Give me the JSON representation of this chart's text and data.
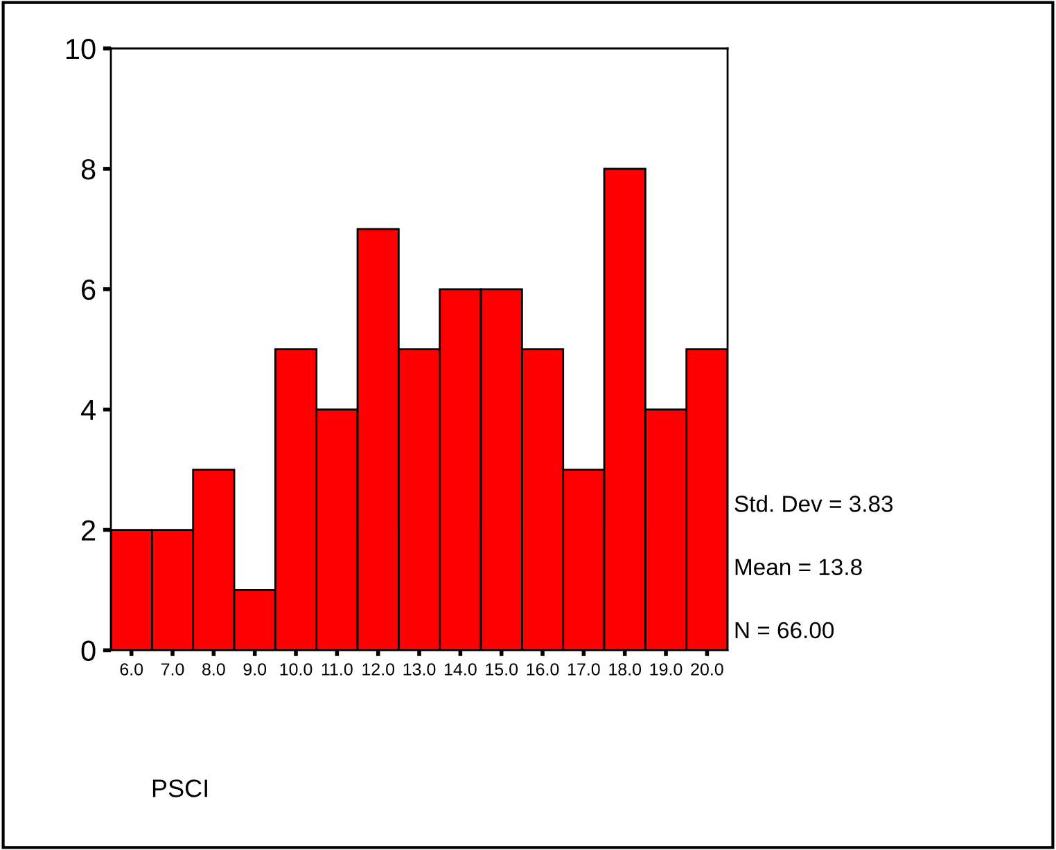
{
  "chart_data": {
    "type": "histogram",
    "bins": [
      5.5,
      6.5,
      7.5,
      8.5,
      9.5,
      10.5,
      11.5,
      12.5,
      13.5,
      14.5,
      15.5,
      16.5,
      17.5,
      18.5,
      19.5,
      20.5
    ],
    "values": [
      2,
      2,
      3,
      1,
      5,
      4,
      7,
      5,
      6,
      6,
      5,
      3,
      8,
      4,
      5
    ],
    "color": "#ff0000",
    "xlabel": "PSCI",
    "xlim": [
      5.5,
      20.5
    ],
    "xticks": [
      {
        "value": 6,
        "label": "6.0"
      },
      {
        "value": 7,
        "label": "7.0"
      },
      {
        "value": 8,
        "label": "8.0"
      },
      {
        "value": 9,
        "label": "9.0"
      },
      {
        "value": 10,
        "label": "10.0"
      },
      {
        "value": 11,
        "label": "11.0"
      },
      {
        "value": 12,
        "label": "12.0"
      },
      {
        "value": 13,
        "label": "13.0"
      },
      {
        "value": 14,
        "label": "14.0"
      },
      {
        "value": 15,
        "label": "15.0"
      },
      {
        "value": 16,
        "label": "16.0"
      },
      {
        "value": 17,
        "label": "17.0"
      },
      {
        "value": 18,
        "label": "18.0"
      },
      {
        "value": 19,
        "label": "19.0"
      },
      {
        "value": 20,
        "label": "20.0"
      }
    ],
    "ylim": [
      0,
      10
    ],
    "yticks": [
      0,
      2,
      4,
      6,
      8,
      10
    ],
    "grid": false,
    "annotations": [
      "Std. Dev = 3.83",
      "Mean = 13.8",
      "N = 66.00"
    ]
  }
}
